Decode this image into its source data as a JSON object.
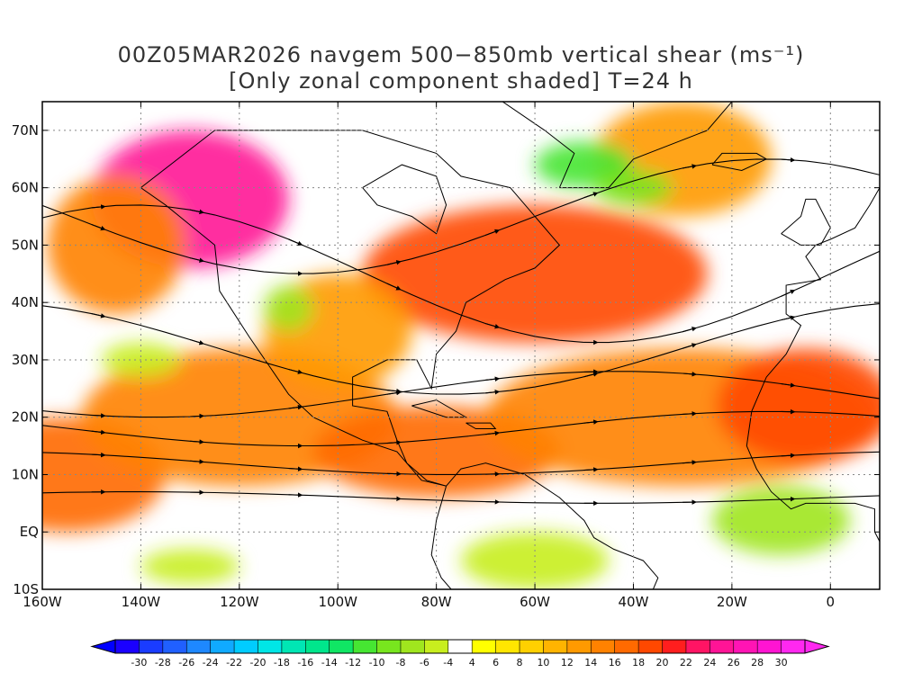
{
  "title": {
    "line1": "00Z05MAR2026 navgem 500−850mb vertical shear (ms⁻¹)",
    "line2": "[Only zonal component shaded] T=24 h"
  },
  "axes": {
    "lon_range": [
      -160,
      10
    ],
    "lat_range": [
      -10,
      75
    ],
    "lon_ticks": [
      {
        "value": -160,
        "label": "160W"
      },
      {
        "value": -140,
        "label": "140W"
      },
      {
        "value": -120,
        "label": "120W"
      },
      {
        "value": -100,
        "label": "100W"
      },
      {
        "value": -80,
        "label": "80W"
      },
      {
        "value": -60,
        "label": "60W"
      },
      {
        "value": -40,
        "label": "40W"
      },
      {
        "value": -20,
        "label": "20W"
      },
      {
        "value": 0,
        "label": "0"
      }
    ],
    "lat_ticks": [
      {
        "value": -10,
        "label": "10S"
      },
      {
        "value": 0,
        "label": "EQ"
      },
      {
        "value": 10,
        "label": "10N"
      },
      {
        "value": 20,
        "label": "20N"
      },
      {
        "value": 30,
        "label": "30N"
      },
      {
        "value": 40,
        "label": "40N"
      },
      {
        "value": 50,
        "label": "50N"
      },
      {
        "value": 60,
        "label": "60N"
      },
      {
        "value": 70,
        "label": "70N"
      }
    ],
    "grid": "dotted"
  },
  "colorbar": {
    "labels": [
      "-30",
      "-28",
      "-26",
      "-24",
      "-22",
      "-20",
      "-18",
      "-16",
      "-14",
      "-12",
      "-10",
      "-8",
      "-6",
      "-4",
      "4",
      "6",
      "8",
      "10",
      "12",
      "14",
      "16",
      "18",
      "20",
      "22",
      "24",
      "26",
      "28",
      "30"
    ],
    "colors": [
      "#1a00ff",
      "#1a3cff",
      "#2060ff",
      "#1e88ff",
      "#10aaff",
      "#00ccff",
      "#00e6e6",
      "#00e6b4",
      "#00e68c",
      "#10e664",
      "#46e632",
      "#78e61e",
      "#a0e61e",
      "#c8ee1e",
      "#ffffff",
      "#ffff00",
      "#ffe600",
      "#ffd000",
      "#ffb400",
      "#ff9a00",
      "#ff8200",
      "#ff6a00",
      "#ff4800",
      "#ff1e1e",
      "#ff1464",
      "#ff1496",
      "#ff14b4",
      "#ff14d2",
      "#ff28f0"
    ],
    "under_color": "#0000ff",
    "over_color": "#ff28f0"
  },
  "shear_blobs": [
    {
      "lon": -155,
      "lat": 10,
      "rx": 20,
      "ry": 10,
      "value": 16
    },
    {
      "lon": -120,
      "lat": 20,
      "rx": 32,
      "ry": 12,
      "value": 14
    },
    {
      "lon": -80,
      "lat": 14,
      "rx": 25,
      "ry": 8,
      "value": 16
    },
    {
      "lon": -30,
      "lat": 20,
      "rx": 40,
      "ry": 12,
      "value": 14
    },
    {
      "lon": -5,
      "lat": 22,
      "rx": 18,
      "ry": 10,
      "value": 18
    },
    {
      "lon": -60,
      "lat": 45,
      "rx": 35,
      "ry": 12,
      "value": 18
    },
    {
      "lon": -30,
      "lat": 65,
      "rx": 18,
      "ry": 10,
      "value": 12
    },
    {
      "lon": -130,
      "lat": 58,
      "rx": 20,
      "ry": 12,
      "value": 24
    },
    {
      "lon": -145,
      "lat": 50,
      "rx": 14,
      "ry": 12,
      "value": 14
    },
    {
      "lon": -100,
      "lat": 35,
      "rx": 15,
      "ry": 10,
      "value": 12
    },
    {
      "lon": -110,
      "lat": 39,
      "rx": 5,
      "ry": 4,
      "value": -8
    },
    {
      "lon": -10,
      "lat": 2,
      "rx": 14,
      "ry": 6,
      "value": -8
    },
    {
      "lon": -60,
      "lat": -5,
      "rx": 15,
      "ry": 5,
      "value": -6
    },
    {
      "lon": -50,
      "lat": 64,
      "rx": 10,
      "ry": 4,
      "value": -12
    },
    {
      "lon": -40,
      "lat": 60,
      "rx": 8,
      "ry": 3,
      "value": -10
    },
    {
      "lon": -140,
      "lat": 30,
      "rx": 8,
      "ry": 3,
      "value": -6
    },
    {
      "lon": -130,
      "lat": -6,
      "rx": 10,
      "ry": 3,
      "value": -6
    }
  ],
  "streamlines": [
    {
      "lat0": 6,
      "amp": 1,
      "phase": 0
    },
    {
      "lat0": 12,
      "amp": 2,
      "phase": 1
    },
    {
      "lat0": 18,
      "amp": 3,
      "phase": 2
    },
    {
      "lat0": 24,
      "amp": 4,
      "phase": 3
    },
    {
      "lat0": 32,
      "amp": 8,
      "phase": 1
    },
    {
      "lat0": 45,
      "amp": 12,
      "phase": 0
    },
    {
      "lat0": 55,
      "amp": 10,
      "phase": 2
    }
  ]
}
